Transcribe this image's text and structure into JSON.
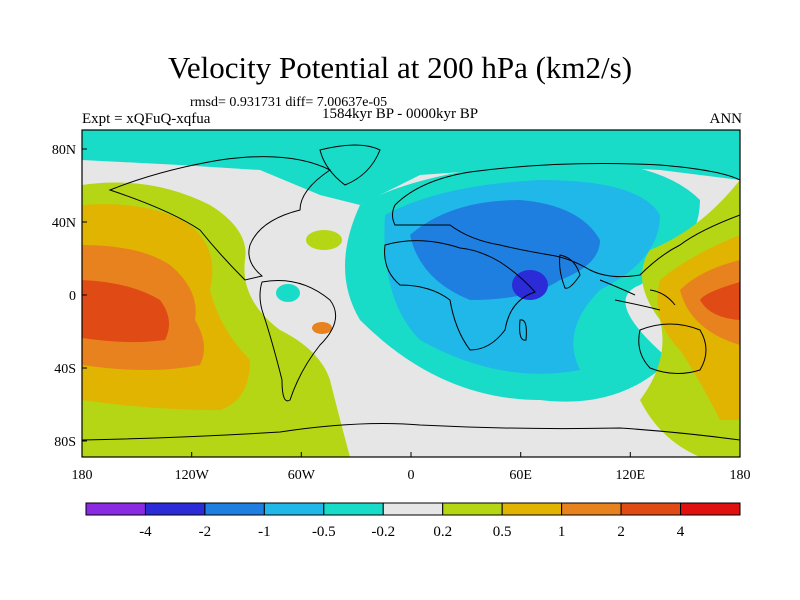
{
  "header": {
    "title": "Velocity Potential at 200 hPa (km2/s)",
    "stats": "rmsd= 0.931731 diff= 7.00637e-05",
    "subtitle": "1584kyr BP - 0000kyr BP",
    "experiment": "Expt = xQFuQ-xqfua",
    "season": "ANN"
  },
  "map": {
    "lon_ticks": [
      "180",
      "120W",
      "60W",
      "0",
      "60E",
      "120E",
      "180"
    ],
    "lat_ticks": [
      "80N",
      "40N",
      "0",
      "40S",
      "80S"
    ]
  },
  "colorbar": {
    "colors": [
      "#8a2be2",
      "#2b2bd8",
      "#1e7fe0",
      "#1fb8e8",
      "#19dcc8",
      "#e6e6e6",
      "#b5d614",
      "#e0b400",
      "#e8821e",
      "#e04a14",
      "#e01010"
    ],
    "labels": [
      "-4",
      "-2",
      "-1",
      "-0.5",
      "-0.2",
      "0.2",
      "0.5",
      "1",
      "2",
      "4"
    ]
  }
}
